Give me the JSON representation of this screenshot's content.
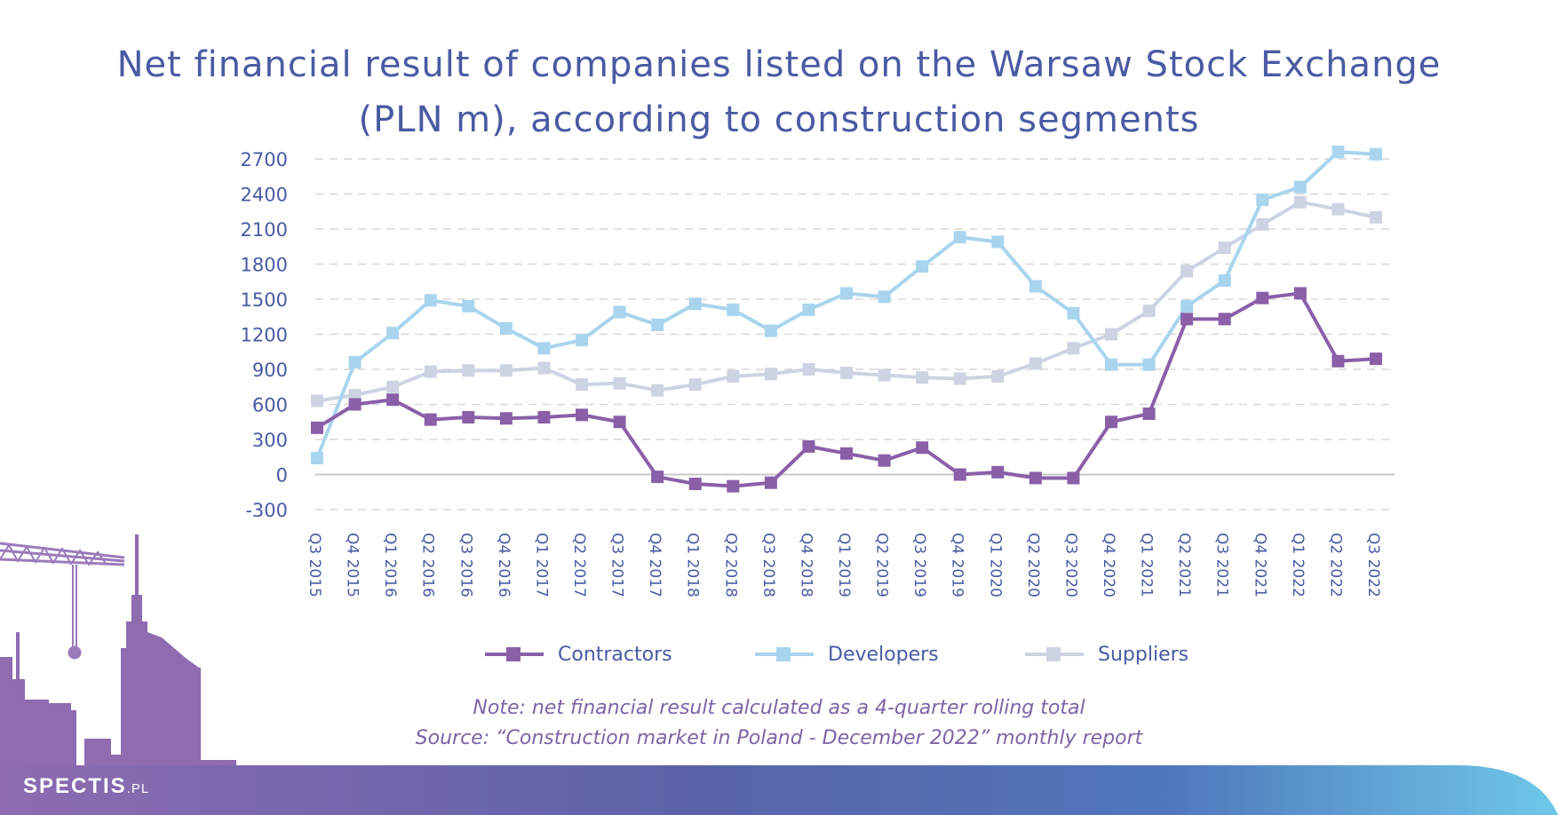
{
  "title_line1": "Net financial result of companies listed on the Warsaw Stock Exchange",
  "title_line2": "(PLN m), according to construction segments",
  "note": "Note: net financial result calculated as a 4-quarter rolling total",
  "source": "Source: “Construction market in Poland - December 2022” monthly report",
  "logo": {
    "main": "SPECTIS",
    "suffix": ".PL"
  },
  "colors": {
    "title": "#4a5aa3",
    "contractors": "#8a5fa8",
    "developers": "#a8d4ee",
    "suppliers": "#cdd3e2",
    "grid": "#d7d7d7",
    "axis_text": "#4a5aa3",
    "note": "#7d64a6",
    "skyline": "#8f6bb0"
  },
  "chart_data": {
    "type": "line",
    "title": "Net financial result of companies listed on the Warsaw Stock Exchange (PLN m), according to construction segments",
    "xlabel": "",
    "ylabel": "",
    "ylim": [
      -300,
      2700
    ],
    "yticks": [
      -300,
      0,
      300,
      600,
      900,
      1200,
      1500,
      1800,
      2100,
      2400,
      2700
    ],
    "grid": true,
    "legend_position": "bottom",
    "categories": [
      "Q3 2015",
      "Q4 2015",
      "Q1 2016",
      "Q2 2016",
      "Q3 2016",
      "Q4 2016",
      "Q1 2017",
      "Q2 2017",
      "Q3 2017",
      "Q4 2017",
      "Q1 2018",
      "Q2 2018",
      "Q3 2018",
      "Q4 2018",
      "Q1 2019",
      "Q2 2019",
      "Q3 2019",
      "Q4 2019",
      "Q1 2020",
      "Q2 2020",
      "Q3 2020",
      "Q4 2020",
      "Q1 2021",
      "Q2 2021",
      "Q3 2021",
      "Q4 2021",
      "Q1 2022",
      "Q2 2022",
      "Q3 2022"
    ],
    "series": [
      {
        "name": "Contractors",
        "color": "#8a5fa8",
        "values": [
          400,
          600,
          640,
          470,
          490,
          480,
          490,
          510,
          450,
          -20,
          -80,
          -100,
          -70,
          240,
          180,
          120,
          230,
          0,
          20,
          -30,
          -30,
          450,
          520,
          1330,
          1330,
          1510,
          1550,
          970,
          990
        ]
      },
      {
        "name": "Developers",
        "color": "#a8d4ee",
        "values": [
          140,
          960,
          1210,
          1490,
          1440,
          1250,
          1080,
          1150,
          1390,
          1280,
          1460,
          1410,
          1230,
          1410,
          1550,
          1520,
          1780,
          2030,
          1990,
          1610,
          1380,
          940,
          940,
          1440,
          1660,
          2350,
          2460,
          2760,
          2740
        ]
      },
      {
        "name": "Suppliers",
        "color": "#cdd3e2",
        "values": [
          630,
          680,
          750,
          880,
          890,
          890,
          910,
          770,
          780,
          720,
          770,
          840,
          860,
          900,
          870,
          850,
          830,
          820,
          840,
          950,
          1080,
          1200,
          1400,
          1740,
          1940,
          2140,
          2330,
          2270,
          2200
        ]
      }
    ]
  }
}
